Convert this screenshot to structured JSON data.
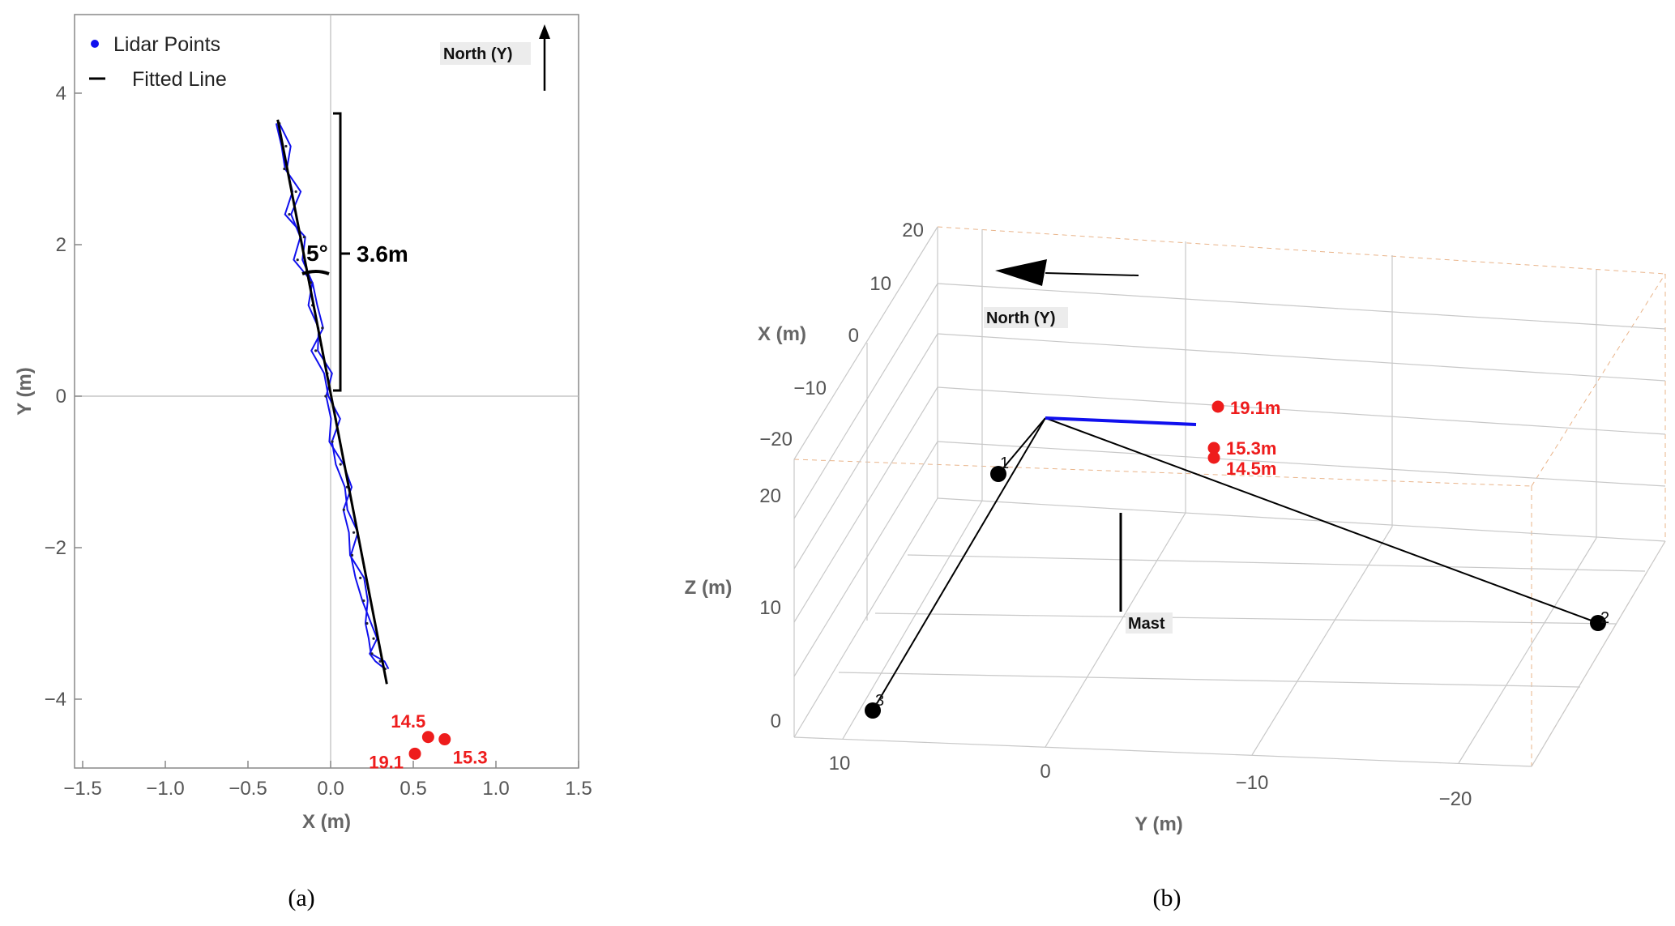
{
  "panel_a": {
    "caption": "(a)",
    "legend": [
      {
        "label": "Lidar Points",
        "marker": "dot",
        "color": "#1010ee"
      },
      {
        "label": "Fitted Line",
        "marker": "line",
        "color": "#000000"
      }
    ],
    "north_label": "North (Y)",
    "angle_label": "5°",
    "length_label": "3.6m"
  },
  "panel_b": {
    "caption": "(b)",
    "north_label": "North (Y)",
    "mast_label": "Mast",
    "axes": {
      "x": {
        "label": "X (m)",
        "ticks": [
          "20",
          "10",
          "0",
          "−10",
          "−20"
        ]
      },
      "z": {
        "label": "Z (m)",
        "ticks": [
          "20",
          "10",
          "0"
        ]
      },
      "y": {
        "label": "Y (m)",
        "ticks": [
          "10",
          "0",
          "−10",
          "−20"
        ]
      }
    },
    "station_labels": [
      "1",
      "2",
      "3"
    ],
    "target_labels": [
      "19.1m",
      "15.3m",
      "14.5m"
    ]
  },
  "colors": {
    "lidar": "#1010ee",
    "fit": "#000000",
    "targets": "#ee1c1c",
    "grid": "#c8c8c8"
  },
  "chart_data": [
    {
      "type": "scatter",
      "title": "",
      "xlabel": "X (m)",
      "ylabel": "Y (m)",
      "xlim": [
        -1.5,
        1.5
      ],
      "ylim": [
        -5,
        5
      ],
      "xticks": [
        -1.5,
        -1.0,
        -0.5,
        0.0,
        0.5,
        1.0,
        1.5
      ],
      "xtick_labels": [
        "−1.5",
        "−1.0",
        "−0.5",
        "0.0",
        "0.5",
        "1.0",
        "1.5"
      ],
      "yticks": [
        -4,
        -2,
        0,
        2,
        4
      ],
      "ytick_labels": [
        "−4",
        "−2",
        "0",
        "2",
        "4"
      ],
      "legend_position": "top-left",
      "series": [
        {
          "name": "Lidar Points",
          "x": [
            -0.31,
            -0.27,
            -0.28,
            -0.21,
            -0.25,
            -0.16,
            -0.2,
            -0.12,
            -0.11,
            -0.05,
            -0.09,
            -0.02,
            -0.03,
            0.03,
            0.01,
            0.06,
            0.1,
            0.08,
            0.14,
            0.13,
            0.18,
            0.2,
            0.22,
            0.26,
            0.25,
            0.3,
            0.33
          ],
          "y": [
            3.6,
            3.3,
            3.0,
            2.7,
            2.4,
            2.1,
            1.8,
            1.5,
            1.2,
            0.9,
            0.6,
            0.3,
            0.0,
            -0.3,
            -0.6,
            -0.9,
            -1.2,
            -1.5,
            -1.8,
            -2.1,
            -2.4,
            -2.7,
            -3.0,
            -3.2,
            -3.4,
            -3.5,
            -3.6
          ]
        },
        {
          "name": "Fitted Line",
          "x": [
            -0.32,
            0.34
          ],
          "y": [
            3.65,
            -3.8
          ]
        }
      ],
      "targets": [
        {
          "label": "14.5",
          "x": 0.59,
          "y": -4.5
        },
        {
          "label": "15.3",
          "x": 0.69,
          "y": -4.53
        },
        {
          "label": "19.1",
          "x": 0.51,
          "y": -4.72
        }
      ],
      "annotations": [
        {
          "text": "5°",
          "kind": "angle"
        },
        {
          "text": "3.6m",
          "kind": "span",
          "y_from": 0,
          "y_to": 3.7
        }
      ]
    },
    {
      "type": "scatter",
      "title": "",
      "projection": "3d",
      "xlabel": "X (m)",
      "ylabel": "Y (m)",
      "zlabel": "Z (m)",
      "xlim": [
        -20,
        20
      ],
      "ylim": [
        -20,
        10
      ],
      "zlim": [
        0,
        20
      ],
      "stations": [
        {
          "label": "1"
        },
        {
          "label": "2"
        },
        {
          "label": "3"
        }
      ],
      "targets": [
        {
          "label": "19.1m",
          "distance": 19.1
        },
        {
          "label": "15.3m",
          "distance": 15.3
        },
        {
          "label": "14.5m",
          "distance": 14.5
        }
      ]
    }
  ]
}
